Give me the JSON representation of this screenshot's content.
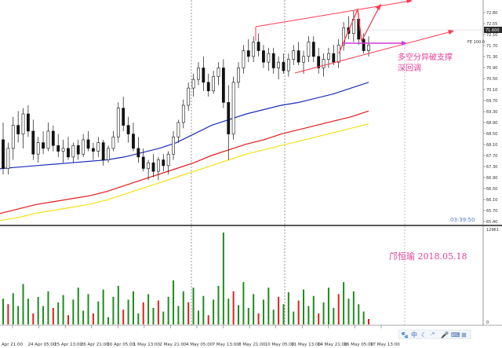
{
  "chart_data": {
    "type": "candlestick",
    "price_axis": {
      "labels": [
        "72.80",
        "72.55",
        "72.10",
        "71.70",
        "71.30",
        "70.90",
        "70.50",
        "70.10",
        "69.70",
        "69.30",
        "68.90",
        "68.50",
        "68.10",
        "67.70",
        "67.30",
        "66.90",
        "66.50",
        "66.10",
        "65.70",
        "65.40"
      ],
      "ylim": [
        65.4,
        73.0
      ]
    },
    "volume_axis": {
      "labels": [
        "12961",
        "0"
      ],
      "ylim": [
        0,
        12961
      ]
    },
    "time_axis": {
      "labels": [
        "Apr 21:00",
        "24 Apr 05:00",
        "25 Apr 13:00",
        "26 Apr 21:00",
        "30 Apr 05:00",
        "1 May 13:00",
        "2 May 21:00",
        "4 May 05:00",
        "7 May 13:00",
        "8 May 21:00",
        "10 May 05:00",
        "11 May 13:00",
        "14 May 21:00",
        "16 May 05:00",
        "17 May 13:00"
      ]
    },
    "current_price": "71.600",
    "current_line_label": "FE 100.0",
    "countdown": "03:39:50",
    "annotation": [
      "多空分异破支撑",
      "深回调"
    ],
    "signature": "邝恒瑜 2018.05.18",
    "ma_fast": [
      67.2,
      67.3,
      67.35,
      67.4,
      67.45,
      67.5,
      67.55,
      67.6,
      67.7,
      67.85,
      68.0,
      68.2,
      68.5,
      68.8,
      69.0,
      69.2,
      69.35,
      69.5,
      69.6,
      69.75,
      69.9,
      70.1,
      70.3
    ],
    "ma_mid": [
      65.6,
      65.75,
      65.9,
      66.05,
      66.15,
      66.25,
      66.35,
      66.5,
      66.7,
      66.9,
      67.1,
      67.3,
      67.5,
      67.75,
      67.95,
      68.15,
      68.3,
      68.5,
      68.65,
      68.8,
      68.95,
      69.1,
      69.3
    ],
    "ma_slow": [
      65.4,
      65.5,
      65.6,
      65.75,
      65.85,
      65.95,
      66.05,
      66.2,
      66.4,
      66.6,
      66.8,
      67.0,
      67.2,
      67.4,
      67.6,
      67.8,
      67.95,
      68.1,
      68.25,
      68.4,
      68.55,
      68.7,
      68.85
    ],
    "candles": [
      [
        68.3,
        68.9,
        67.1,
        67.3
      ],
      [
        67.3,
        68.2,
        67.1,
        68.0
      ],
      [
        68.0,
        69.1,
        67.6,
        68.8
      ],
      [
        68.8,
        69.3,
        68.2,
        68.5
      ],
      [
        68.5,
        69.4,
        68.0,
        69.2
      ],
      [
        69.2,
        69.5,
        68.4,
        68.6
      ],
      [
        68.6,
        69.0,
        67.6,
        67.8
      ],
      [
        67.8,
        68.4,
        67.5,
        68.2
      ],
      [
        68.2,
        68.6,
        67.8,
        68.0
      ],
      [
        68.0,
        68.9,
        67.9,
        68.6
      ],
      [
        68.6,
        68.8,
        67.9,
        68.1
      ],
      [
        68.1,
        68.5,
        67.7,
        67.9
      ],
      [
        67.9,
        68.3,
        67.5,
        68.0
      ],
      [
        68.0,
        68.4,
        67.6,
        67.7
      ],
      [
        67.7,
        68.2,
        67.5,
        68.1
      ],
      [
        68.1,
        68.3,
        67.6,
        67.8
      ],
      [
        67.8,
        68.5,
        67.7,
        68.3
      ],
      [
        68.3,
        68.6,
        67.9,
        68.0
      ],
      [
        68.0,
        68.2,
        67.6,
        67.9
      ],
      [
        67.9,
        68.4,
        67.7,
        68.2
      ],
      [
        68.2,
        68.3,
        67.4,
        67.6
      ],
      [
        67.6,
        68.1,
        67.5,
        68.0
      ],
      [
        68.0,
        68.6,
        67.9,
        68.4
      ],
      [
        68.4,
        69.6,
        68.2,
        69.4
      ],
      [
        69.4,
        69.8,
        68.6,
        68.8
      ],
      [
        68.8,
        69.1,
        68.2,
        68.5
      ],
      [
        68.5,
        68.9,
        67.9,
        68.0
      ],
      [
        68.0,
        68.4,
        67.5,
        67.7
      ],
      [
        67.7,
        68.0,
        67.2,
        67.3
      ],
      [
        67.3,
        67.6,
        66.9,
        67.5
      ],
      [
        67.5,
        67.8,
        67.0,
        67.2
      ],
      [
        67.2,
        67.7,
        66.9,
        67.6
      ],
      [
        67.6,
        67.8,
        67.2,
        67.4
      ],
      [
        67.4,
        67.9,
        67.1,
        67.8
      ],
      [
        67.8,
        68.6,
        67.6,
        68.4
      ],
      [
        68.4,
        69.0,
        68.2,
        68.9
      ],
      [
        68.9,
        69.7,
        68.7,
        69.5
      ],
      [
        69.5,
        70.3,
        69.3,
        70.1
      ],
      [
        70.1,
        70.6,
        69.8,
        70.4
      ],
      [
        70.4,
        71.0,
        70.2,
        70.8
      ],
      [
        70.8,
        71.2,
        70.0,
        70.3
      ],
      [
        70.3,
        70.6,
        69.8,
        70.0
      ],
      [
        70.0,
        70.7,
        69.9,
        70.5
      ],
      [
        70.5,
        71.0,
        70.2,
        70.8
      ],
      [
        70.8,
        71.1,
        69.4,
        69.6
      ],
      [
        69.6,
        70.2,
        67.6,
        68.5
      ],
      [
        68.5,
        70.5,
        68.3,
        70.3
      ],
      [
        70.3,
        71.0,
        70.1,
        70.8
      ],
      [
        70.8,
        71.6,
        70.6,
        71.4
      ],
      [
        71.4,
        71.8,
        71.0,
        71.2
      ],
      [
        71.2,
        71.9,
        71.0,
        71.7
      ],
      [
        71.7,
        72.0,
        71.2,
        71.4
      ],
      [
        71.4,
        71.6,
        70.8,
        71.0
      ],
      [
        71.0,
        71.5,
        70.7,
        71.3
      ],
      [
        71.3,
        71.5,
        70.6,
        70.8
      ],
      [
        70.8,
        71.2,
        70.4,
        71.0
      ],
      [
        71.0,
        71.3,
        70.6,
        70.7
      ],
      [
        70.7,
        71.3,
        70.5,
        71.1
      ],
      [
        71.1,
        71.6,
        70.9,
        71.4
      ],
      [
        71.4,
        71.7,
        70.9,
        71.0
      ],
      [
        71.0,
        71.4,
        70.6,
        71.2
      ],
      [
        71.2,
        71.9,
        71.0,
        71.7
      ],
      [
        71.7,
        71.9,
        71.0,
        71.2
      ],
      [
        71.2,
        71.5,
        70.6,
        70.8
      ],
      [
        70.8,
        71.3,
        70.5,
        71.1
      ],
      [
        71.1,
        71.5,
        70.8,
        71.3
      ],
      [
        71.3,
        71.6,
        70.9,
        71.0
      ],
      [
        71.0,
        71.8,
        70.8,
        71.6
      ],
      [
        71.6,
        72.4,
        71.4,
        72.2
      ],
      [
        72.2,
        72.6,
        71.8,
        72.0
      ],
      [
        72.0,
        72.8,
        71.7,
        72.5
      ],
      [
        72.5,
        72.7,
        71.6,
        71.8
      ],
      [
        71.8,
        72.0,
        71.3,
        71.4
      ],
      [
        71.4,
        71.9,
        71.2,
        71.6
      ]
    ],
    "volume": [
      [
        0.28,
        1
      ],
      [
        0.22,
        0
      ],
      [
        0.34,
        1
      ],
      [
        0.2,
        1
      ],
      [
        0.44,
        1
      ],
      [
        0.28,
        1
      ],
      [
        0.12,
        0
      ],
      [
        0.3,
        1
      ],
      [
        0.2,
        1
      ],
      [
        0.36,
        1
      ],
      [
        0.18,
        0
      ],
      [
        0.24,
        1
      ],
      [
        0.32,
        1
      ],
      [
        0.1,
        0
      ],
      [
        0.27,
        1
      ],
      [
        0.4,
        1
      ],
      [
        0.15,
        1
      ],
      [
        0.33,
        1
      ],
      [
        0.12,
        0
      ],
      [
        0.25,
        1
      ],
      [
        0.38,
        1
      ],
      [
        0.08,
        1
      ],
      [
        0.3,
        1
      ],
      [
        0.42,
        1
      ],
      [
        0.16,
        0
      ],
      [
        0.27,
        1
      ],
      [
        0.36,
        1
      ],
      [
        0.12,
        1
      ],
      [
        0.24,
        0
      ],
      [
        0.33,
        1
      ],
      [
        0.18,
        1
      ],
      [
        0.26,
        0
      ],
      [
        0.14,
        1
      ],
      [
        0.3,
        1
      ],
      [
        0.48,
        1
      ],
      [
        0.2,
        1
      ],
      [
        0.36,
        1
      ],
      [
        0.24,
        0
      ],
      [
        0.4,
        1
      ],
      [
        0.15,
        1
      ],
      [
        0.31,
        1
      ],
      [
        0.1,
        0
      ],
      [
        0.27,
        1
      ],
      [
        0.42,
        1
      ],
      [
        1.0,
        1
      ],
      [
        0.28,
        1
      ],
      [
        0.36,
        0
      ],
      [
        0.21,
        1
      ],
      [
        0.46,
        1
      ],
      [
        0.18,
        1
      ],
      [
        0.33,
        1
      ],
      [
        0.12,
        0
      ],
      [
        0.27,
        1
      ],
      [
        0.4,
        1
      ],
      [
        0.16,
        1
      ],
      [
        0.3,
        0
      ],
      [
        0.22,
        1
      ],
      [
        0.35,
        1
      ],
      [
        0.14,
        1
      ],
      [
        0.26,
        0
      ],
      [
        0.38,
        1
      ],
      [
        0.2,
        1
      ],
      [
        0.31,
        1
      ],
      [
        0.12,
        0
      ],
      [
        0.24,
        1
      ],
      [
        0.4,
        1
      ],
      [
        0.18,
        1
      ],
      [
        0.33,
        0
      ],
      [
        0.46,
        1
      ],
      [
        0.28,
        1
      ],
      [
        0.36,
        1
      ],
      [
        0.22,
        1
      ],
      [
        0.14,
        1
      ],
      [
        0.06,
        0
      ]
    ]
  }
}
